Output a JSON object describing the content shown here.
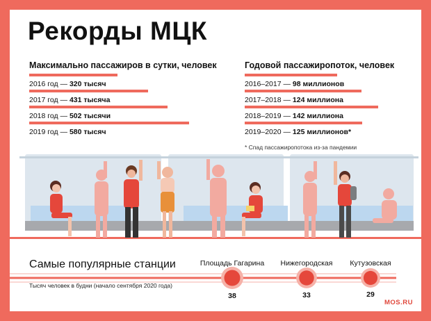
{
  "title": "Рекорды МЦК",
  "brand": "MOS.RU",
  "colors": {
    "accent": "#ef6a5d",
    "dark": "#e0473b"
  },
  "chart_data": [
    {
      "type": "bar",
      "title": "Максимально пассажиров в сутки, человек",
      "categories": [
        "2016 год",
        "2017 год",
        "2018 год",
        "2019 год"
      ],
      "values": [
        320,
        431,
        502,
        580
      ],
      "labels": [
        "320 тысяч",
        "431 тысяча",
        "502 тысячи",
        "580 тысяч"
      ],
      "xlim": [
        0,
        580
      ]
    },
    {
      "type": "bar",
      "title": "Годовой пассажиропоток, человек",
      "categories": [
        "2016–2017",
        "2017–2018",
        "2018–2019",
        "2019–2020"
      ],
      "values": [
        98,
        124,
        142,
        125
      ],
      "labels": [
        "98 миллионов",
        "124 миллиона",
        "142 миллиона",
        "125 миллионов*"
      ],
      "xlim": [
        0,
        142
      ],
      "footnote": "* Спад пассажиропотока из-за пандемии"
    },
    {
      "type": "scatter",
      "title": "Самые популярные станции",
      "subtitle": "Тысяч человек в будни (начало сентября 2020 года)",
      "categories": [
        "Площадь Гагарина",
        "Нижегородская",
        "Кутузовская"
      ],
      "values": [
        38,
        33,
        29
      ]
    }
  ]
}
